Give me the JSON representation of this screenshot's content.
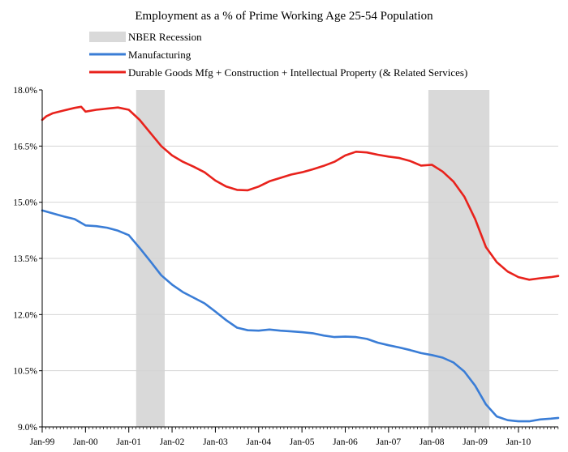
{
  "chart_data": {
    "type": "line",
    "title": "Employment as a % of Prime Working Age 25-54 Population",
    "xlabel": "",
    "ylabel": "",
    "ylim": [
      9.0,
      18.0
    ],
    "y_ticks": [
      "18.0%",
      "16.5%",
      "15.0%",
      "13.5%",
      "12.0%",
      "10.5%",
      "9.0%"
    ],
    "y_tick_values": [
      18.0,
      16.5,
      15.0,
      13.5,
      12.0,
      10.5,
      9.0
    ],
    "x_domain": [
      1999.0,
      2010.92
    ],
    "x_ticks": [
      "Jan-99",
      "Jan-00",
      "Jan-01",
      "Jan-02",
      "Jan-03",
      "Jan-04",
      "Jan-05",
      "Jan-06",
      "Jan-07",
      "Jan-08",
      "Jan-09",
      "Jan-10"
    ],
    "x_tick_values": [
      1999,
      2000,
      2001,
      2002,
      2003,
      2004,
      2005,
      2006,
      2007,
      2008,
      2009,
      2010
    ],
    "grid": "horizontal",
    "legend_position": "top-left",
    "recessions": [
      {
        "name": "NBER Recession",
        "start": 2001.17,
        "end": 2001.83
      },
      {
        "name": "NBER Recession",
        "start": 2007.92,
        "end": 2009.33
      }
    ],
    "recession_color": "#d9d9d9",
    "series": [
      {
        "name": "Manufacturing",
        "color": "#3a7dd6",
        "x": [
          1999.0,
          1999.25,
          1999.5,
          1999.75,
          2000.0,
          2000.25,
          2000.5,
          2000.75,
          2001.0,
          2001.25,
          2001.5,
          2001.75,
          2002.0,
          2002.25,
          2002.5,
          2002.75,
          2003.0,
          2003.25,
          2003.5,
          2003.75,
          2004.0,
          2004.25,
          2004.5,
          2004.75,
          2005.0,
          2005.25,
          2005.5,
          2005.75,
          2006.0,
          2006.25,
          2006.5,
          2006.75,
          2007.0,
          2007.25,
          2007.5,
          2007.75,
          2008.0,
          2008.25,
          2008.5,
          2008.75,
          2009.0,
          2009.25,
          2009.5,
          2009.75,
          2010.0,
          2010.25,
          2010.5,
          2010.75,
          2010.92
        ],
        "values": [
          14.78,
          14.7,
          14.62,
          14.55,
          14.38,
          14.36,
          14.32,
          14.24,
          14.12,
          13.78,
          13.42,
          13.05,
          12.8,
          12.6,
          12.45,
          12.3,
          12.08,
          11.85,
          11.65,
          11.58,
          11.57,
          11.6,
          11.57,
          11.55,
          11.53,
          11.5,
          11.44,
          11.4,
          11.41,
          11.4,
          11.35,
          11.25,
          11.18,
          11.12,
          11.05,
          10.97,
          10.92,
          10.85,
          10.72,
          10.48,
          10.1,
          9.6,
          9.28,
          9.18,
          9.15,
          9.15,
          9.2,
          9.22,
          9.24
        ]
      },
      {
        "name": "Durable Goods Mfg + Construction + Intellectual Property (& Related Services)",
        "color": "#e8221c",
        "x": [
          1999.0,
          1999.1,
          1999.25,
          1999.5,
          1999.75,
          1999.9,
          2000.0,
          2000.25,
          2000.5,
          2000.75,
          2001.0,
          2001.25,
          2001.5,
          2001.75,
          2002.0,
          2002.25,
          2002.5,
          2002.75,
          2003.0,
          2003.25,
          2003.5,
          2003.75,
          2004.0,
          2004.25,
          2004.5,
          2004.75,
          2005.0,
          2005.25,
          2005.5,
          2005.75,
          2006.0,
          2006.25,
          2006.5,
          2006.75,
          2007.0,
          2007.25,
          2007.5,
          2007.75,
          2008.0,
          2008.25,
          2008.5,
          2008.75,
          2009.0,
          2009.25,
          2009.5,
          2009.75,
          2010.0,
          2010.25,
          2010.5,
          2010.75,
          2010.92
        ],
        "values": [
          17.2,
          17.3,
          17.38,
          17.45,
          17.52,
          17.55,
          17.42,
          17.47,
          17.5,
          17.53,
          17.47,
          17.2,
          16.85,
          16.5,
          16.25,
          16.08,
          15.95,
          15.8,
          15.58,
          15.42,
          15.33,
          15.32,
          15.42,
          15.56,
          15.65,
          15.74,
          15.8,
          15.88,
          15.97,
          16.08,
          16.25,
          16.35,
          16.33,
          16.27,
          16.22,
          16.18,
          16.1,
          15.98,
          16.0,
          15.82,
          15.55,
          15.15,
          14.55,
          13.8,
          13.4,
          13.15,
          13.0,
          12.93,
          12.97,
          13.0,
          13.03
        ]
      }
    ]
  }
}
